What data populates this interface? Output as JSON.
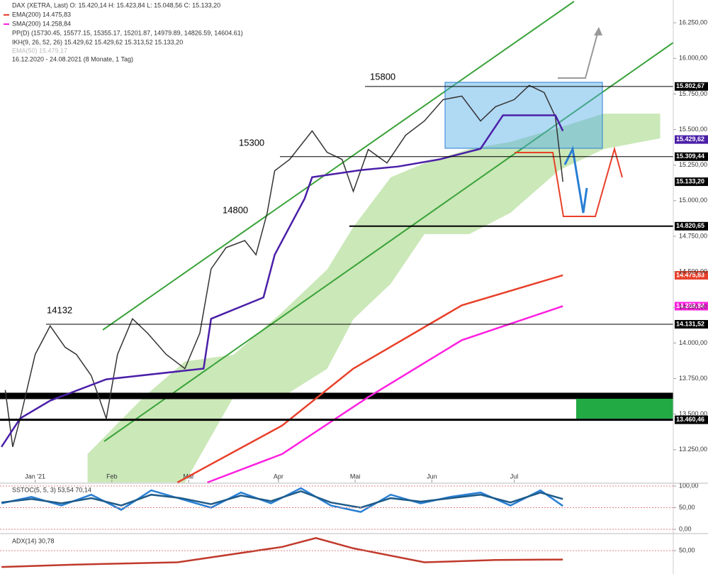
{
  "header": {
    "lines": [
      "DAX (XETRA, Last)  O: 15.420,14  H: 15.423,84  L: 15.048,56  C: 15.133,20",
      "EMA(200)  14.475,83",
      "SMA(200)  14.258,84",
      "PP(D)  (15730.45, 15577.15, 15355.17, 15201.87, 14979.89, 14826.59, 14604.61)",
      "IKH(9, 26, 52, 26)  15.429,62  15.429,62  15.313,52  15.133,20",
      "EMA(50)  15.479,17",
      "16.12.2020 - 24.08.2021 (8 Monate, 1 Tag)"
    ]
  },
  "chart_data": [
    {
      "type": "line",
      "xlim": [
        -0.4,
        179.5
      ],
      "ylim": [
        13020,
        16410
      ],
      "xticks": [
        {
          "value": 9,
          "label": "Jan '21"
        },
        {
          "value": 29.5,
          "label": "Feb"
        },
        {
          "value": 50,
          "label": "Mär"
        },
        {
          "value": 74,
          "label": "Apr"
        },
        {
          "value": 94.5,
          "label": "Mai"
        },
        {
          "value": 115,
          "label": "Jun"
        },
        {
          "value": 137,
          "label": "Jul"
        }
      ],
      "yticks": [
        {
          "value": 16250,
          "label": "16.250,00"
        },
        {
          "value": 16000,
          "label": "16.000,00"
        },
        {
          "value": 15750,
          "label": "15.750,00"
        },
        {
          "value": 15500,
          "label": "15.500,00"
        },
        {
          "value": 15250,
          "label": "15.250,00"
        },
        {
          "value": 15000,
          "label": "15.000,00"
        },
        {
          "value": 14750,
          "label": "14.750,00"
        },
        {
          "value": 14500,
          "label": "14.500,00"
        },
        {
          "value": 14250,
          "label": "14.250,00"
        },
        {
          "value": 14000,
          "label": "14.000,00"
        },
        {
          "value": 13750,
          "label": "13.750,00"
        },
        {
          "value": 13500,
          "label": "13.500,00"
        },
        {
          "value": 13250,
          "label": "13.250,00"
        }
      ],
      "cloud": {
        "color": "#b9e0a0",
        "x": [
          23,
          38,
          49,
          62,
          75,
          87,
          94,
          104,
          113,
          125,
          136,
          149,
          161,
          176
        ],
        "upper": [
          13220,
          13620,
          13870,
          13918,
          14217,
          14516,
          14815,
          15164,
          15263,
          15363,
          15413,
          15513,
          15612,
          15612
        ],
        "lower": [
          13020,
          13020,
          13020,
          13620,
          13620,
          13818,
          14167,
          14416,
          14765,
          14765,
          14915,
          15214,
          15363,
          15438
        ]
      },
      "series": [
        {
          "name": "DAX",
          "color": "#333333",
          "x": [
            1,
            3,
            5,
            9,
            13,
            17,
            20,
            24,
            28,
            31,
            35,
            39,
            44,
            49,
            53,
            56,
            60,
            65,
            68,
            71,
            73,
            77,
            83,
            87,
            91,
            94,
            98,
            103,
            108,
            113,
            118,
            123,
            128,
            132,
            137,
            141,
            145,
            148,
            150
          ],
          "values": [
            13670,
            13270,
            13470,
            13920,
            14120,
            13970,
            13920,
            13770,
            13470,
            13920,
            14170,
            14070,
            13920,
            13820,
            14070,
            14520,
            14670,
            14720,
            14620,
            14915,
            15210,
            15290,
            15490,
            15340,
            15290,
            15065,
            15360,
            15265,
            15460,
            15560,
            15710,
            15735,
            15560,
            15660,
            15710,
            15810,
            15760,
            15590,
            15133
          ]
        },
        {
          "name": "EMA(200)",
          "color": "#e8402a",
          "x": [
            47,
            75,
            94,
            123,
            150
          ],
          "values": [
            13020,
            13420,
            13820,
            14265,
            14476
          ]
        },
        {
          "name": "SMA(200)",
          "color": "#ff20e0",
          "x": [
            55,
            75,
            98,
            123,
            150
          ],
          "values": [
            13020,
            13220,
            13620,
            14020,
            14259
          ]
        },
        {
          "name": "IKH",
          "color": "#4b1fa8",
          "x": [
            0,
            5,
            13,
            28,
            54,
            56,
            70,
            73,
            81,
            83,
            96,
            106,
            117,
            128,
            134,
            148,
            150
          ],
          "values": [
            13270,
            13470,
            13595,
            13745,
            13820,
            14170,
            14320,
            14620,
            15015,
            15165,
            15215,
            15240,
            15290,
            15365,
            15600,
            15600,
            15490
          ]
        }
      ],
      "levels": [
        {
          "value": 15802.67,
          "label": "15.802,67",
          "color": "#000000"
        },
        {
          "value": 15429.62,
          "label": "15.429,62",
          "color": "#4b1fa8"
        },
        {
          "value": 15309.44,
          "label": "15.309,44",
          "color": "#000000"
        },
        {
          "value": 15133.2,
          "label": "15.133,20",
          "color": "#000000"
        },
        {
          "value": 14820.65,
          "label": "14.820,65",
          "color": "#000000"
        },
        {
          "value": 14475.83,
          "label": "14.475,83",
          "color": "#e8402a"
        },
        {
          "value": 14258.84,
          "label": "14.258,84",
          "color": "#ff20e0"
        },
        {
          "value": 14131.52,
          "label": "14.131,52",
          "color": "#000000"
        },
        {
          "value": 13460.46,
          "label": "13.460,46",
          "color": "#000000"
        }
      ],
      "annotations": [
        "15800",
        "15300",
        "14800",
        "14132"
      ]
    },
    {
      "type": "line",
      "title": "SSTOC(5, 5, 3)  53,54  70,14",
      "ylim": [
        0,
        100
      ],
      "yticks": [
        {
          "value": 100,
          "label": "100,00"
        },
        {
          "value": 50,
          "label": "50,00"
        },
        {
          "value": 0,
          "label": "0,00"
        }
      ],
      "series": [
        {
          "name": "K",
          "color": "#2a7fd4",
          "x": [
            0,
            8,
            16,
            24,
            32,
            40,
            48,
            56,
            64,
            72,
            80,
            88,
            96,
            104,
            112,
            120,
            128,
            136,
            144,
            150
          ],
          "values": [
            60,
            75,
            55,
            80,
            45,
            90,
            70,
            50,
            85,
            60,
            95,
            55,
            40,
            80,
            60,
            75,
            85,
            55,
            90,
            54
          ]
        },
        {
          "name": "D",
          "color": "#1f5c8a",
          "x": [
            0,
            8,
            16,
            24,
            32,
            40,
            48,
            56,
            64,
            72,
            80,
            88,
            96,
            104,
            112,
            120,
            128,
            136,
            144,
            150
          ],
          "values": [
            62,
            70,
            60,
            72,
            55,
            80,
            72,
            58,
            78,
            65,
            88,
            62,
            50,
            72,
            64,
            72,
            80,
            62,
            85,
            70
          ]
        }
      ]
    },
    {
      "type": "line",
      "title": "ADX(14)  30,78",
      "ylim": [
        0,
        82
      ],
      "yticks": [
        {
          "value": 50,
          "label": "50,00"
        }
      ],
      "series": [
        {
          "name": "ADX",
          "color": "#c0392b",
          "x": [
            0,
            19,
            47,
            75,
            84,
            94,
            113,
            132,
            150
          ],
          "values": [
            15,
            20,
            25,
            58,
            77,
            55,
            25,
            30,
            31
          ]
        }
      ]
    }
  ]
}
